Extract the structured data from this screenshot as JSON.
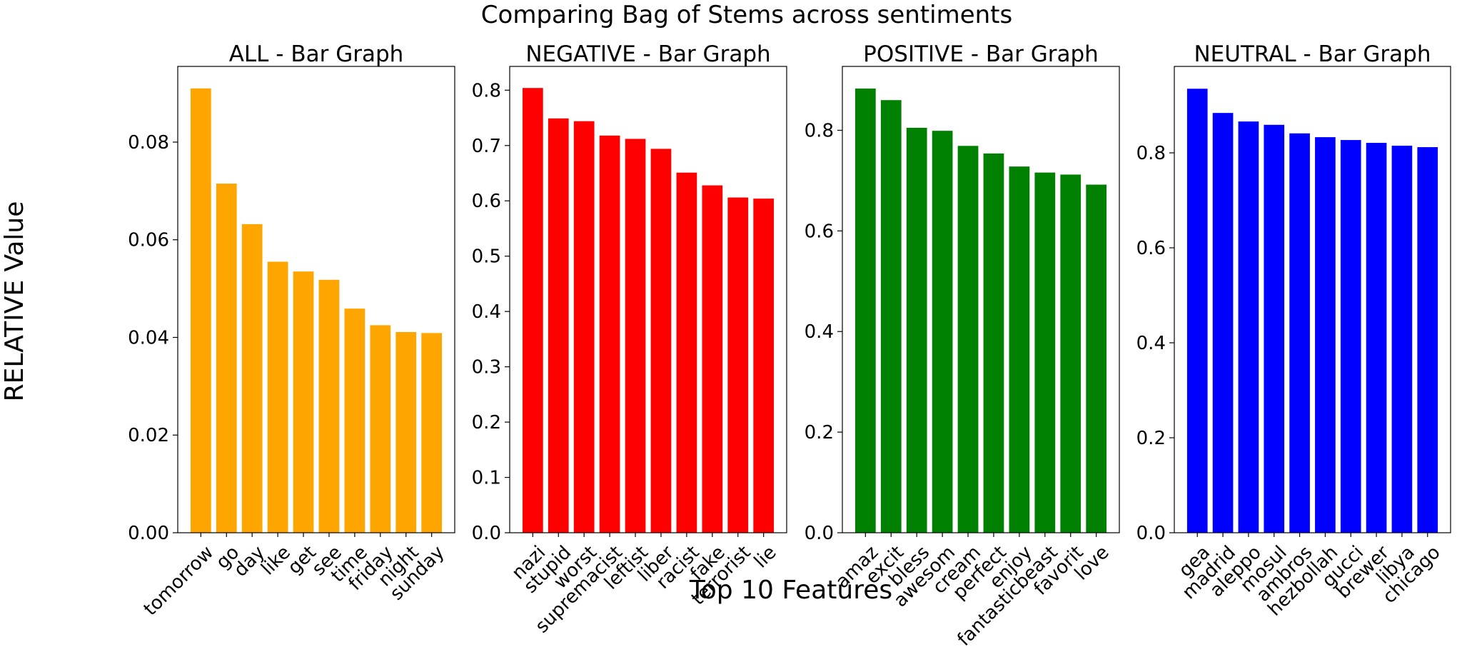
{
  "figure": {
    "suptitle": "Comparing Bag of Stems across sentiments",
    "ylabel": "RELATIVE Value",
    "xlabel": "Top 10 Features"
  },
  "chart_data": [
    {
      "type": "bar",
      "title": "ALL - Bar Graph",
      "color": "#ffa500",
      "categories": [
        "tomorrow",
        "go",
        "day",
        "like",
        "get",
        "see",
        "time",
        "friday",
        "night",
        "sunday"
      ],
      "values": [
        0.091,
        0.0715,
        0.0632,
        0.0555,
        0.0535,
        0.0518,
        0.0459,
        0.0425,
        0.0411,
        0.0409
      ],
      "ylim": [
        0,
        0.0955
      ],
      "yticks": [
        0,
        0.02,
        0.04,
        0.06,
        0.08
      ],
      "ytick_labels": [
        "0.00",
        "0.02",
        "0.04",
        "0.06",
        "0.08"
      ]
    },
    {
      "type": "bar",
      "title": "NEGATIVE - Bar Graph",
      "color": "#ff0000",
      "categories": [
        "nazi",
        "stupid",
        "worst",
        "supremacist",
        "leftist",
        "liber",
        "racist",
        "fake",
        "terrorist",
        "lie"
      ],
      "values": [
        0.804,
        0.749,
        0.744,
        0.718,
        0.712,
        0.694,
        0.651,
        0.628,
        0.606,
        0.604
      ],
      "ylim": [
        0,
        0.843
      ],
      "yticks": [
        0,
        0.1,
        0.2,
        0.3,
        0.4,
        0.5,
        0.6,
        0.7,
        0.8
      ],
      "ytick_labels": [
        "0.0",
        "0.1",
        "0.2",
        "0.3",
        "0.4",
        "0.5",
        "0.6",
        "0.7",
        "0.8"
      ]
    },
    {
      "type": "bar",
      "title": "POSITIVE - Bar Graph",
      "color": "#008000",
      "categories": [
        "amaz",
        "excit",
        "bless",
        "awesom",
        "cream",
        "perfect",
        "enjoy",
        "fantasticbeast",
        "favorit",
        "love"
      ],
      "values": [
        0.883,
        0.86,
        0.805,
        0.799,
        0.769,
        0.754,
        0.728,
        0.716,
        0.712,
        0.692
      ],
      "ylim": [
        0,
        0.927
      ],
      "yticks": [
        0,
        0.2,
        0.4,
        0.6,
        0.8
      ],
      "ytick_labels": [
        "0.0",
        "0.2",
        "0.4",
        "0.6",
        "0.8"
      ]
    },
    {
      "type": "bar",
      "title": "NEUTRAL - Bar Graph",
      "color": "#0000ff",
      "categories": [
        "gea",
        "madrid",
        "aleppo",
        "mosul",
        "ambros",
        "hezbollah",
        "gucci",
        "brewer",
        "libya",
        "chicago"
      ],
      "values": [
        0.935,
        0.884,
        0.866,
        0.859,
        0.841,
        0.833,
        0.827,
        0.821,
        0.815,
        0.812
      ],
      "ylim": [
        0,
        0.982
      ],
      "yticks": [
        0,
        0.2,
        0.4,
        0.6,
        0.8
      ],
      "ytick_labels": [
        "0.0",
        "0.2",
        "0.4",
        "0.6",
        "0.8"
      ]
    }
  ]
}
